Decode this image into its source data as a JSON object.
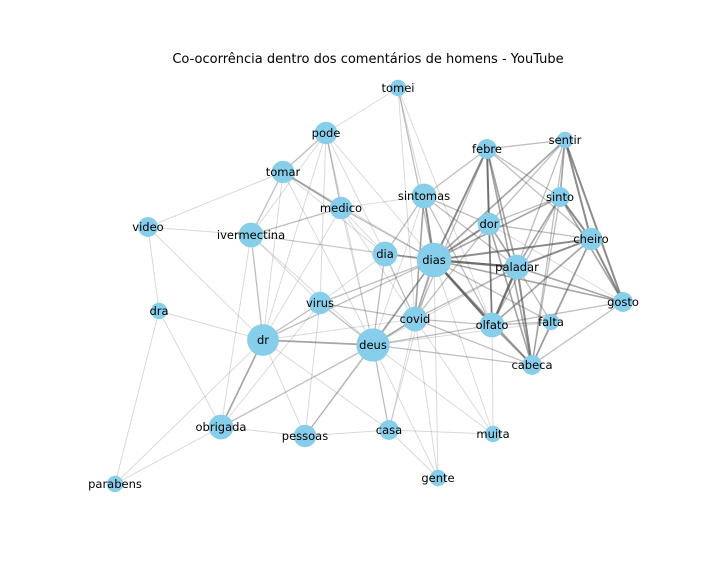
{
  "title": "Co-ocorrência dentro dos comentários de homens - YouTube",
  "colors": {
    "node": "#87ceeb",
    "edge": "#555555",
    "background": "#ffffff"
  },
  "nodes": [
    {
      "id": "tomei",
      "label": "tomei",
      "weight": 1
    },
    {
      "id": "pode",
      "label": "pode",
      "weight": 3
    },
    {
      "id": "febre",
      "label": "febre",
      "weight": 2
    },
    {
      "id": "sentir",
      "label": "sentir",
      "weight": 1
    },
    {
      "id": "tomar",
      "label": "tomar",
      "weight": 3
    },
    {
      "id": "sintomas",
      "label": "sintomas",
      "weight": 4
    },
    {
      "id": "sinto",
      "label": "sinto",
      "weight": 2
    },
    {
      "id": "medico",
      "label": "medico",
      "weight": 3
    },
    {
      "id": "dor",
      "label": "dor",
      "weight": 3
    },
    {
      "id": "video",
      "label": "video",
      "weight": 2
    },
    {
      "id": "ivermectina",
      "label": "ivermectina",
      "weight": 4
    },
    {
      "id": "cheiro",
      "label": "cheiro",
      "weight": 3
    },
    {
      "id": "dia",
      "label": "dia",
      "weight": 4
    },
    {
      "id": "dias",
      "label": "dias",
      "weight": 10
    },
    {
      "id": "paladar",
      "label": "paladar",
      "weight": 4
    },
    {
      "id": "gosto",
      "label": "gosto",
      "weight": 2
    },
    {
      "id": "virus",
      "label": "virus",
      "weight": 3
    },
    {
      "id": "dra",
      "label": "dra",
      "weight": 1
    },
    {
      "id": "covid",
      "label": "covid",
      "weight": 4
    },
    {
      "id": "falta",
      "label": "falta",
      "weight": 1
    },
    {
      "id": "olfato",
      "label": "olfato",
      "weight": 4
    },
    {
      "id": "dr",
      "label": "dr",
      "weight": 8
    },
    {
      "id": "deus",
      "label": "deus",
      "weight": 9
    },
    {
      "id": "cabeca",
      "label": "cabeca",
      "weight": 2
    },
    {
      "id": "obrigada",
      "label": "obrigada",
      "weight": 4
    },
    {
      "id": "pessoas",
      "label": "pessoas",
      "weight": 3
    },
    {
      "id": "casa",
      "label": "casa",
      "weight": 2
    },
    {
      "id": "muita",
      "label": "muita",
      "weight": 1
    },
    {
      "id": "gente",
      "label": "gente",
      "weight": 1
    },
    {
      "id": "parabens",
      "label": "parabens",
      "weight": 1
    }
  ],
  "edges": [
    [
      "dias",
      "paladar",
      5
    ],
    [
      "dias",
      "olfato",
      5
    ],
    [
      "dias",
      "cheiro",
      4
    ],
    [
      "dias",
      "dor",
      4
    ],
    [
      "dias",
      "sintomas",
      4
    ],
    [
      "dias",
      "febre",
      4
    ],
    [
      "dias",
      "sinto",
      3
    ],
    [
      "dias",
      "covid",
      3
    ],
    [
      "dias",
      "dia",
      3
    ],
    [
      "dias",
      "cabeca",
      3
    ],
    [
      "dias",
      "gosto",
      3
    ],
    [
      "dias",
      "sentir",
      3
    ],
    [
      "dias",
      "deus",
      3
    ],
    [
      "dias",
      "medico",
      2
    ],
    [
      "dias",
      "tomei",
      2
    ],
    [
      "dias",
      "dr",
      2
    ],
    [
      "dias",
      "falta",
      2
    ],
    [
      "dias",
      "virus",
      2
    ],
    [
      "dias",
      "ivermectina",
      1
    ],
    [
      "dias",
      "pode",
      1
    ],
    [
      "dias",
      "tomar",
      1
    ],
    [
      "dias",
      "casa",
      1
    ],
    [
      "dias",
      "pessoas",
      1
    ],
    [
      "dias",
      "muita",
      1
    ],
    [
      "dias",
      "gente",
      1
    ],
    [
      "paladar",
      "olfato",
      5
    ],
    [
      "paladar",
      "cheiro",
      4
    ],
    [
      "paladar",
      "cabeca",
      4
    ],
    [
      "paladar",
      "dor",
      3
    ],
    [
      "paladar",
      "gosto",
      3
    ],
    [
      "paladar",
      "sinto",
      3
    ],
    [
      "paladar",
      "febre",
      3
    ],
    [
      "paladar",
      "falta",
      2
    ],
    [
      "paladar",
      "sintomas",
      2
    ],
    [
      "paladar",
      "sentir",
      2
    ],
    [
      "paladar",
      "covid",
      2
    ],
    [
      "paladar",
      "deus",
      1
    ],
    [
      "olfato",
      "cheiro",
      3
    ],
    [
      "olfato",
      "cabeca",
      3
    ],
    [
      "olfato",
      "dor",
      3
    ],
    [
      "olfato",
      "febre",
      3
    ],
    [
      "olfato",
      "sinto",
      2
    ],
    [
      "olfato",
      "falta",
      2
    ],
    [
      "olfato",
      "sintomas",
      2
    ],
    [
      "olfato",
      "covid",
      2
    ],
    [
      "olfato",
      "deus",
      2
    ],
    [
      "olfato",
      "gosto",
      2
    ],
    [
      "cheiro",
      "gosto",
      4
    ],
    [
      "cheiro",
      "sentir",
      4
    ],
    [
      "cheiro",
      "sinto",
      4
    ],
    [
      "cheiro",
      "cabeca",
      3
    ],
    [
      "cheiro",
      "febre",
      2
    ],
    [
      "cheiro",
      "dor",
      2
    ],
    [
      "cheiro",
      "falta",
      1
    ],
    [
      "sentir",
      "gosto",
      4
    ],
    [
      "sentir",
      "sinto",
      3
    ],
    [
      "sentir",
      "febre",
      2
    ],
    [
      "sentir",
      "dor",
      2
    ],
    [
      "sentir",
      "cabeca",
      2
    ],
    [
      "sinto",
      "gosto",
      3
    ],
    [
      "sinto",
      "cabeca",
      2
    ],
    [
      "sinto",
      "dor",
      2
    ],
    [
      "sinto",
      "febre",
      2
    ],
    [
      "febre",
      "dor",
      4
    ],
    [
      "febre",
      "cabeca",
      3
    ],
    [
      "febre",
      "sintomas",
      2
    ],
    [
      "febre",
      "covid",
      2
    ],
    [
      "dor",
      "cabeca",
      3
    ],
    [
      "dor",
      "sintomas",
      2
    ],
    [
      "dor",
      "covid",
      2
    ],
    [
      "dor",
      "gosto",
      1
    ],
    [
      "sintomas",
      "covid",
      3
    ],
    [
      "sintomas",
      "dia",
      2
    ],
    [
      "sintomas",
      "medico",
      1
    ],
    [
      "sintomas",
      "tomei",
      1
    ],
    [
      "sintomas",
      "deus",
      1
    ],
    [
      "dr",
      "deus",
      3
    ],
    [
      "dr",
      "obrigada",
      3
    ],
    [
      "dr",
      "ivermectina",
      2
    ],
    [
      "dr",
      "virus",
      2
    ],
    [
      "dr",
      "video",
      1
    ],
    [
      "dr",
      "dra",
      1
    ],
    [
      "dr",
      "pessoas",
      1
    ],
    [
      "dr",
      "parabens",
      1
    ],
    [
      "dr",
      "tomar",
      1
    ],
    [
      "dr",
      "pode",
      1
    ],
    [
      "dr",
      "medico",
      1
    ],
    [
      "dr",
      "covid",
      1
    ],
    [
      "dr",
      "casa",
      1
    ],
    [
      "deus",
      "covid",
      3
    ],
    [
      "deus",
      "dia",
      2
    ],
    [
      "deus",
      "virus",
      2
    ],
    [
      "deus",
      "pessoas",
      2
    ],
    [
      "deus",
      "obrigada",
      2
    ],
    [
      "deus",
      "casa",
      2
    ],
    [
      "deus",
      "cabeca",
      2
    ],
    [
      "deus",
      "gente",
      1
    ],
    [
      "deus",
      "muita",
      1
    ],
    [
      "deus",
      "medico",
      1
    ],
    [
      "deus",
      "ivermectina",
      1
    ],
    [
      "deus",
      "tomar",
      1
    ],
    [
      "deus",
      "pode",
      1
    ],
    [
      "deus",
      "falta",
      1
    ],
    [
      "ivermectina",
      "tomar",
      2
    ],
    [
      "ivermectina",
      "medico",
      2
    ],
    [
      "ivermectina",
      "virus",
      1
    ],
    [
      "ivermectina",
      "pode",
      1
    ],
    [
      "ivermectina",
      "video",
      1
    ],
    [
      "ivermectina",
      "dia",
      1
    ],
    [
      "ivermectina",
      "obrigada",
      1
    ],
    [
      "tomar",
      "medico",
      3
    ],
    [
      "tomar",
      "pode",
      2
    ],
    [
      "tomar",
      "video",
      1
    ],
    [
      "tomar",
      "dia",
      1
    ],
    [
      "medico",
      "pode",
      2
    ],
    [
      "medico",
      "dia",
      1
    ],
    [
      "medico",
      "covid",
      1
    ],
    [
      "pode",
      "tomei",
      1
    ],
    [
      "pode",
      "virus",
      1
    ],
    [
      "pode",
      "dia",
      1
    ],
    [
      "tomei",
      "olfato",
      1
    ],
    [
      "tomei",
      "covid",
      1
    ],
    [
      "dia",
      "covid",
      2
    ],
    [
      "dia",
      "virus",
      1
    ],
    [
      "dia",
      "paladar",
      1
    ],
    [
      "covid",
      "virus",
      2
    ],
    [
      "covid",
      "casa",
      1
    ],
    [
      "covid",
      "cabeca",
      2
    ],
    [
      "covid",
      "muita",
      1
    ],
    [
      "virus",
      "pessoas",
      1
    ],
    [
      "virus",
      "obrigada",
      1
    ],
    [
      "obrigada",
      "pessoas",
      1
    ],
    [
      "obrigada",
      "parabens",
      1
    ],
    [
      "obrigada",
      "dra",
      1
    ],
    [
      "pessoas",
      "casa",
      1
    ],
    [
      "casa",
      "gente",
      1
    ],
    [
      "casa",
      "muita",
      1
    ],
    [
      "muita",
      "olfato",
      1
    ],
    [
      "gente",
      "covid",
      1
    ],
    [
      "gosto",
      "cabeca",
      2
    ],
    [
      "falta",
      "cabeca",
      1
    ],
    [
      "video",
      "dra",
      1
    ],
    [
      "dra",
      "parabens",
      1
    ]
  ]
}
